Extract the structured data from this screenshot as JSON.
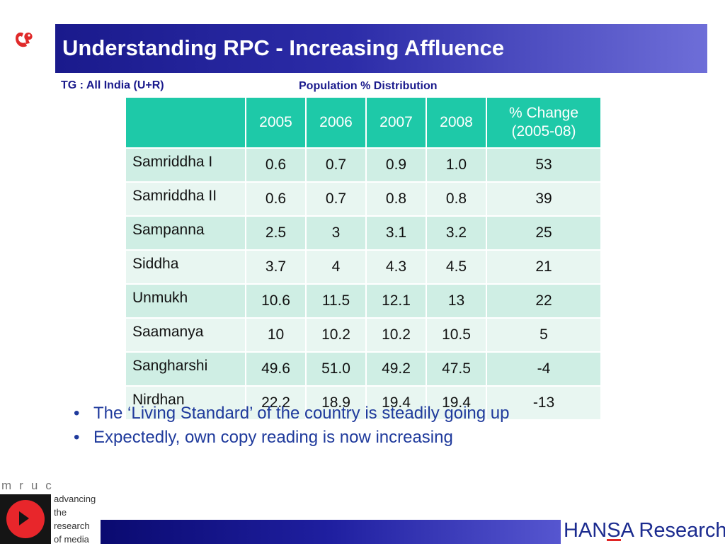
{
  "title": "Understanding RPC - Increasing Affluence",
  "tg_label": "TG : All India (U+R)",
  "table_caption": "Population % Distribution",
  "table": {
    "headers": [
      "",
      "2005",
      "2006",
      "2007",
      "2008"
    ],
    "change_header": [
      "% Change",
      "(2005-08)"
    ],
    "rows": [
      {
        "segment": "Samriddha I",
        "values": [
          "0.6",
          "0.7",
          "0.9",
          "1.0",
          "53"
        ]
      },
      {
        "segment": "Samriddha II",
        "values": [
          "0.6",
          "0.7",
          "0.8",
          "0.8",
          "39"
        ]
      },
      {
        "segment": "Sampanna",
        "values": [
          "2.5",
          "3",
          "3.1",
          "3.2",
          "25"
        ]
      },
      {
        "segment": "Siddha",
        "values": [
          "3.7",
          "4",
          "4.3",
          "4.5",
          "21"
        ]
      },
      {
        "segment": "Unmukh",
        "values": [
          "10.6",
          "11.5",
          "12.1",
          "13",
          "22"
        ]
      },
      {
        "segment": "Saamanya",
        "values": [
          "10",
          "10.2",
          "10.2",
          "10.5",
          "5"
        ]
      },
      {
        "segment": "Sangharshi",
        "values": [
          "49.6",
          "51.0",
          "49.2",
          "47.5",
          "-4"
        ]
      },
      {
        "segment": "Nirdhan",
        "values": [
          "22.2",
          "18.9",
          "19.4",
          "19.4",
          "-13"
        ]
      }
    ]
  },
  "bullet_symbol": "•",
  "bullets": [
    "The ‘Living Standard’ of the country is steadily going up",
    "Expectedly, own copy reading is now increasing"
  ],
  "footer": {
    "mruc_letters": "mruc",
    "tagline": [
      "advancing",
      "the",
      "research",
      "of media"
    ],
    "brand_parts": [
      "HAN",
      "S",
      "A Research"
    ]
  },
  "colors": {
    "title_bar": "#1a1a8c",
    "table_header": "#1ec9a8",
    "row_odd": "#cfeee4",
    "row_even": "#e8f6f1",
    "bullet_text": "#1f3a9c",
    "brand_accent": "#e02424"
  },
  "icons": {
    "corner_logo": "red-bird-logo-icon",
    "mruc_logo": "red-circle-play-icon"
  }
}
